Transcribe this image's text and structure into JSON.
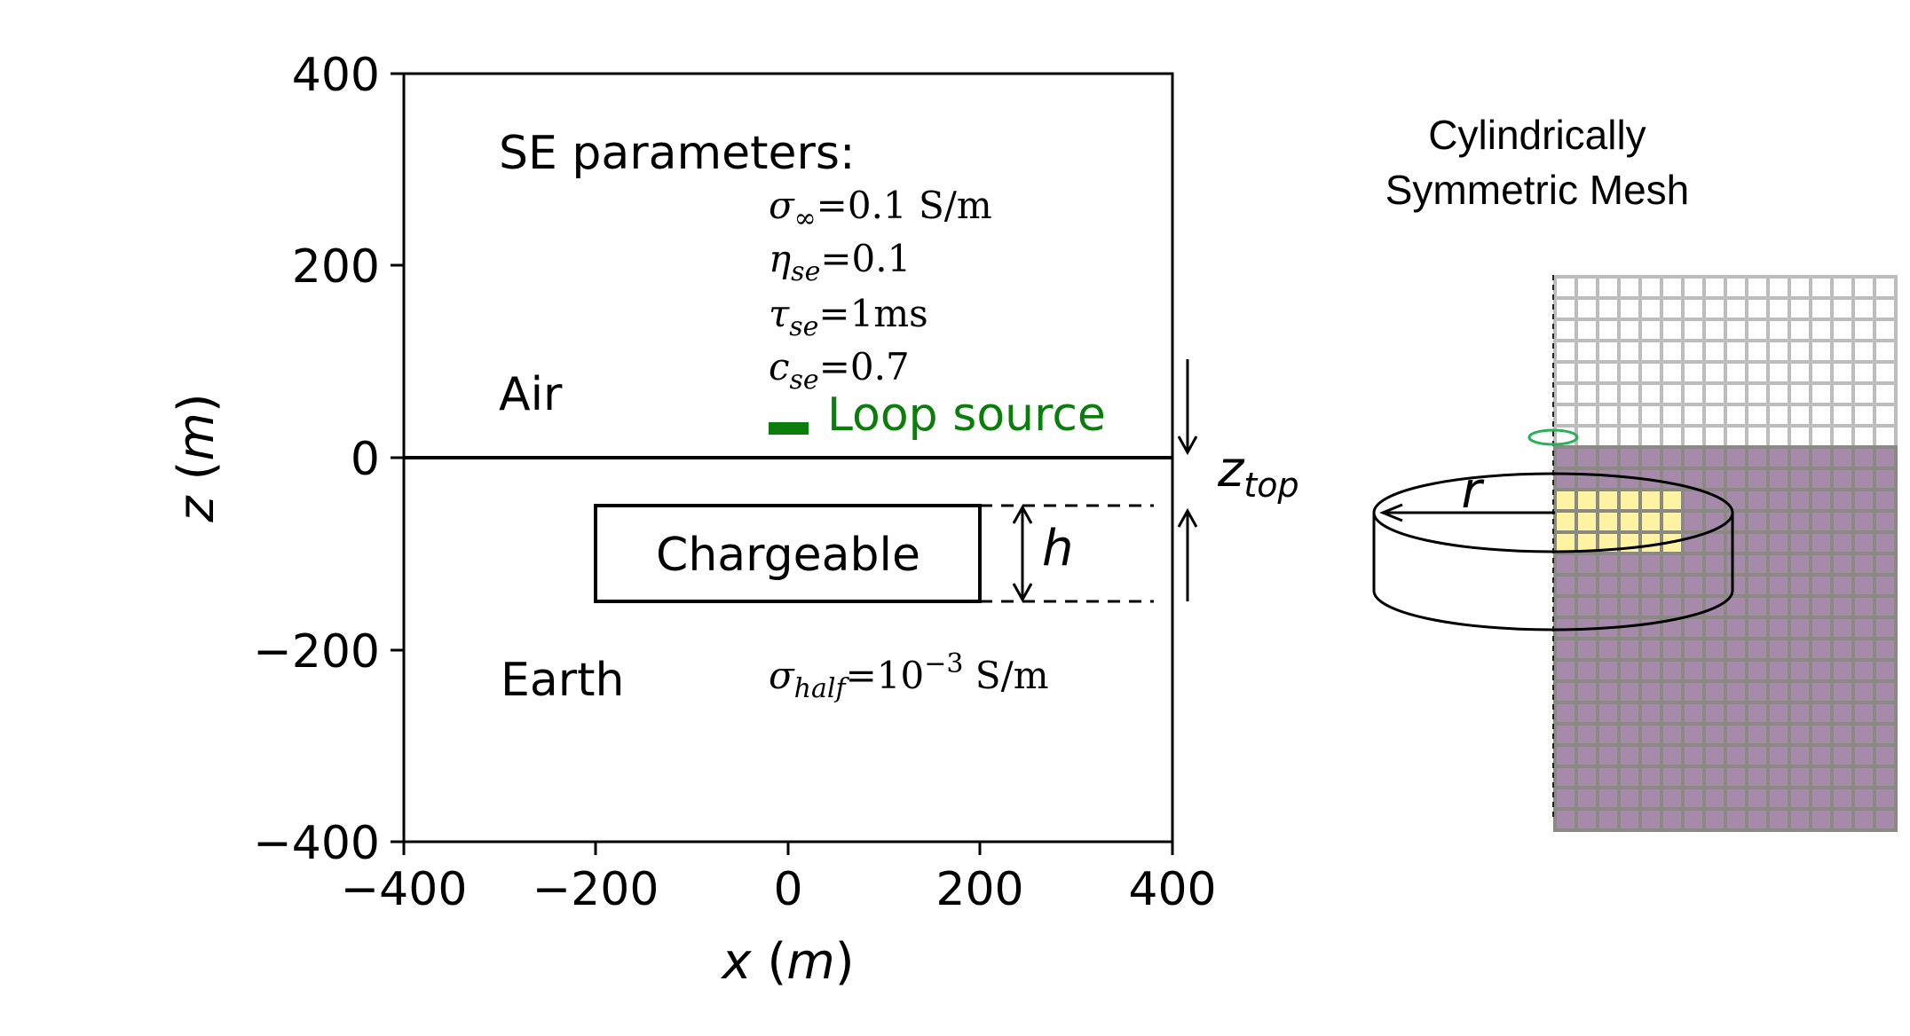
{
  "diagram": {
    "x_axis": {
      "label_var": "x",
      "label_unit": "m",
      "ticks": [
        "−400",
        "−200",
        "0",
        "200",
        "400"
      ],
      "tick_values": [
        -400,
        -200,
        0,
        200,
        400
      ]
    },
    "z_axis": {
      "label_var": "z",
      "label_unit": "m",
      "ticks": [
        "400",
        "200",
        "0",
        "−200",
        "−400"
      ],
      "tick_values": [
        400,
        200,
        0,
        -200,
        -400
      ]
    },
    "regions": {
      "air": "Air",
      "earth": "Earth"
    },
    "se_parameters": {
      "heading": "SE parameters:",
      "sigma_inf": {
        "symbol": "σ",
        "sub": "∞",
        "value": "=0.1 S/m"
      },
      "eta": {
        "symbol": "η",
        "sub": "se",
        "value": "=0.1"
      },
      "tau": {
        "symbol": "τ",
        "sub": "se",
        "value": "=1ms"
      },
      "c": {
        "symbol": "c",
        "sub": "se",
        "value": "=0.7"
      }
    },
    "sigma_half": {
      "symbol": "σ",
      "sub": "half",
      "value_prefix": "=10",
      "exponent": "−3",
      "unit": " S/m"
    },
    "loop_source": {
      "label": "Loop source",
      "color": "#0a7d0a"
    },
    "chargeable": {
      "label": "Chargeable",
      "x_range": [
        -200,
        200
      ],
      "z_range": [
        -50,
        -150
      ]
    },
    "annotations": {
      "h": "h",
      "z_top_var": "z",
      "z_top_sub": "top"
    },
    "mesh": {
      "title_line1": "Cylindrically",
      "title_line2": "Symmetric Mesh",
      "radius_label": "r",
      "air_color": "#ffffff",
      "earth_color": "#a58ba9",
      "target_color": "#fdf3a3",
      "air_grid_color": "#bdbdbd",
      "earth_grid_color": "#8a8a82",
      "ring_color": "#2bb05a"
    }
  }
}
